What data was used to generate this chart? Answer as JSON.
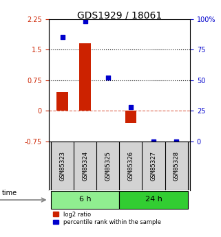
{
  "title": "GDS1929 / 18061",
  "samples": [
    "GSM85323",
    "GSM85324",
    "GSM85325",
    "GSM85326",
    "GSM85327",
    "GSM85328"
  ],
  "log2_ratio": [
    0.45,
    1.65,
    0.0,
    -0.3,
    0.0,
    0.0
  ],
  "percentile_rank": [
    85,
    98,
    52,
    28,
    0,
    0
  ],
  "groups": [
    {
      "label": "6 h",
      "indices": [
        0,
        1,
        2
      ],
      "color": "#90EE90"
    },
    {
      "label": "24 h",
      "indices": [
        3,
        4,
        5
      ],
      "color": "#32CD32"
    }
  ],
  "bar_color": "#CC2200",
  "dot_color": "#0000CC",
  "left_ylim": [
    -0.75,
    2.25
  ],
  "right_ylim": [
    0,
    100
  ],
  "left_yticks": [
    -0.75,
    0,
    0.75,
    1.5,
    2.25
  ],
  "right_yticks": [
    0,
    25,
    50,
    75,
    100
  ],
  "left_ytick_labels": [
    "-0.75",
    "0",
    "0.75",
    "1.5",
    "2.25"
  ],
  "right_ytick_labels": [
    "0",
    "25",
    "50",
    "75",
    "100%"
  ],
  "hlines": [
    0.75,
    1.5
  ],
  "zero_line_y": 0,
  "bg_color": "#ffffff",
  "label_log2": "log2 ratio",
  "label_pct": "percentile rank within the sample",
  "time_label": "time"
}
